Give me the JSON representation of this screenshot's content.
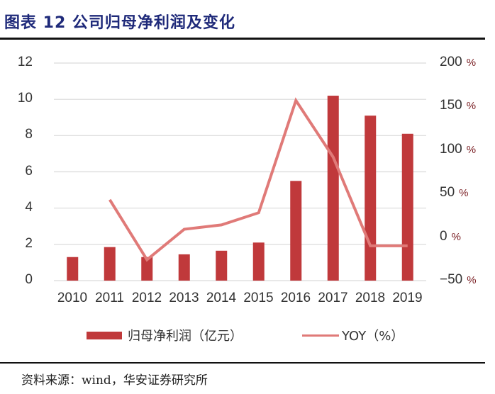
{
  "header": {
    "title": "图表 12  公司归母净利润及变化"
  },
  "footer": {
    "source": "资料来源：wind，华安证券研究所"
  },
  "colors": {
    "title": "#1F2A7A",
    "bar": "#C0393B",
    "line": "#E07A78",
    "grid": "#D9D9D9",
    "axis_text": "#333333"
  },
  "axes": {
    "left_ticks": [
      "0",
      "2",
      "4",
      "6",
      "8",
      "10",
      "12"
    ],
    "right_ticks": [
      "-50",
      "0",
      "50",
      "100",
      "150",
      "200"
    ],
    "right_suffix": "%"
  },
  "legend": {
    "bar_label": "归母净利润（亿元）",
    "line_label": "YOY（%）"
  },
  "chart_data": {
    "type": "bar",
    "title": "公司归母净利润及变化",
    "categories": [
      "2010",
      "2011",
      "2012",
      "2013",
      "2014",
      "2015",
      "2016",
      "2017",
      "2018",
      "2019"
    ],
    "series": [
      {
        "name": "归母净利润（亿元）",
        "type": "bar",
        "axis": "left",
        "values": [
          1.3,
          1.85,
          1.3,
          1.45,
          1.65,
          2.1,
          5.5,
          10.2,
          9.1,
          8.1
        ]
      },
      {
        "name": "YOY（%）",
        "type": "line",
        "axis": "right",
        "values": [
          null,
          43,
          -26,
          9,
          14,
          28,
          157,
          92,
          -10,
          -10
        ]
      }
    ],
    "xlabel": "",
    "ylabel": "",
    "ylim": [
      0,
      12
    ],
    "y2lim": [
      -50,
      200
    ],
    "yticks": [
      0,
      2,
      4,
      6,
      8,
      10,
      12
    ],
    "y2ticks": [
      -50,
      0,
      50,
      100,
      150,
      200
    ],
    "grid": true,
    "legend_position": "bottom"
  }
}
